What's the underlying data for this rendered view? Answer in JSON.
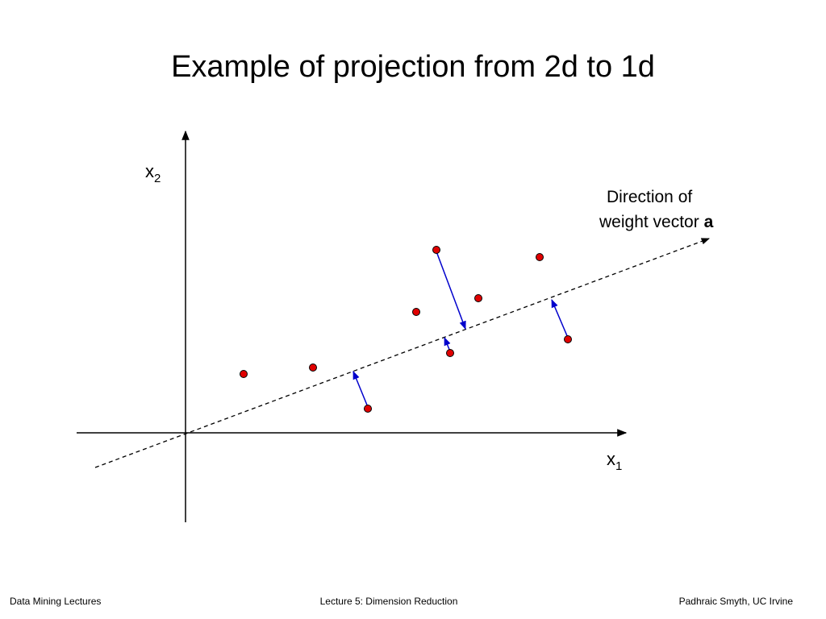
{
  "title": "Example of projection from 2d to 1d",
  "axes": {
    "x2": {
      "base": "x",
      "sub": "2"
    },
    "x1": {
      "base": "x",
      "sub": "1"
    }
  },
  "annotation": {
    "line1": "Direction of",
    "line2": "weight vector ",
    "bold": "a"
  },
  "footer": {
    "left": "Data Mining Lectures",
    "center": "Lecture 5: Dimension Reduction",
    "right": "Padhraic Smyth, UC Irvine"
  }
}
